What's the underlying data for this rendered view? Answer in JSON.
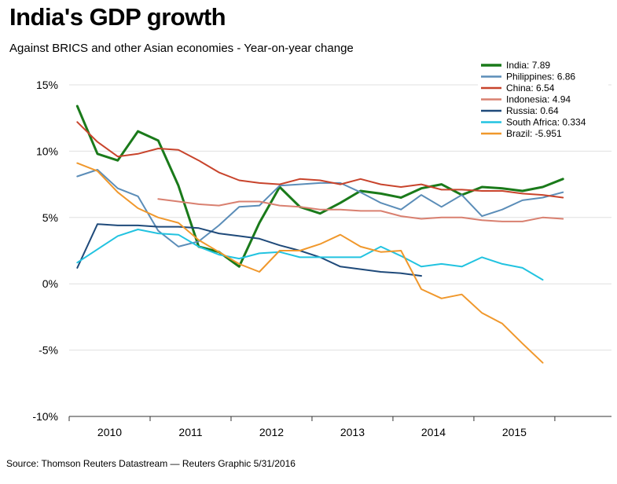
{
  "title": "India's GDP growth",
  "subtitle": "Against BRICS and other Asian economies - Year-on-year change",
  "source": "Source: Thomson Reuters Datastream — Reuters Graphic 5/31/2016",
  "chart_data": {
    "type": "line",
    "title": "India's GDP growth",
    "subtitle": "Against BRICS and other Asian economies - Year-on-year change",
    "xlabel": "",
    "ylabel": "",
    "x_unit": "year (quarterly points)",
    "xlim": [
      2009.5,
      2016.2
    ],
    "ylim": [
      -10,
      15
    ],
    "y_ticks": [
      15,
      10,
      5,
      0,
      -5,
      -10
    ],
    "y_tick_labels": [
      "15%",
      "10%",
      "5%",
      "0%",
      "-5%",
      "-10%"
    ],
    "x_ticks": [
      2010,
      2011,
      2012,
      2013,
      2014,
      2015
    ],
    "x_tick_labels": [
      "2010",
      "2011",
      "2012",
      "2013",
      "2014",
      "2015"
    ],
    "grid": "horizontal",
    "legend_position": "top-right",
    "series": [
      {
        "name": "India: 7.89",
        "color": "#1a7a1a",
        "stroke_width": 3,
        "points": [
          [
            2009.6,
            13.4
          ],
          [
            2009.85,
            9.8
          ],
          [
            2010.1,
            9.3
          ],
          [
            2010.35,
            11.5
          ],
          [
            2010.6,
            10.8
          ],
          [
            2010.85,
            7.4
          ],
          [
            2011.1,
            2.8
          ],
          [
            2011.35,
            2.4
          ],
          [
            2011.6,
            1.3
          ],
          [
            2011.85,
            4.6
          ],
          [
            2012.1,
            7.3
          ],
          [
            2012.35,
            5.8
          ],
          [
            2012.6,
            5.3
          ],
          [
            2012.85,
            6.1
          ],
          [
            2013.1,
            7.0
          ],
          [
            2013.35,
            6.8
          ],
          [
            2013.6,
            6.5
          ],
          [
            2013.85,
            7.2
          ],
          [
            2014.1,
            7.5
          ],
          [
            2014.35,
            6.7
          ],
          [
            2014.6,
            7.3
          ],
          [
            2014.85,
            7.2
          ],
          [
            2015.1,
            7.0
          ],
          [
            2015.35,
            7.3
          ],
          [
            2015.6,
            7.9
          ]
        ]
      },
      {
        "name": "Philippines: 6.86",
        "color": "#5b8db8",
        "stroke_width": 2,
        "points": [
          [
            2009.6,
            8.1
          ],
          [
            2009.85,
            8.6
          ],
          [
            2010.1,
            7.2
          ],
          [
            2010.35,
            6.6
          ],
          [
            2010.6,
            4.0
          ],
          [
            2010.85,
            2.8
          ],
          [
            2011.1,
            3.2
          ],
          [
            2011.35,
            4.4
          ],
          [
            2011.6,
            5.8
          ],
          [
            2011.85,
            5.9
          ],
          [
            2012.1,
            7.4
          ],
          [
            2012.35,
            7.5
          ],
          [
            2012.6,
            7.6
          ],
          [
            2012.85,
            7.6
          ],
          [
            2013.1,
            6.9
          ],
          [
            2013.35,
            6.1
          ],
          [
            2013.6,
            5.6
          ],
          [
            2013.85,
            6.7
          ],
          [
            2014.1,
            5.8
          ],
          [
            2014.35,
            6.7
          ],
          [
            2014.6,
            5.1
          ],
          [
            2014.85,
            5.6
          ],
          [
            2015.1,
            6.3
          ],
          [
            2015.35,
            6.5
          ],
          [
            2015.6,
            6.9
          ]
        ]
      },
      {
        "name": "China: 6.54",
        "color": "#c8442c",
        "stroke_width": 2,
        "points": [
          [
            2009.6,
            12.2
          ],
          [
            2009.85,
            10.7
          ],
          [
            2010.1,
            9.6
          ],
          [
            2010.35,
            9.8
          ],
          [
            2010.6,
            10.2
          ],
          [
            2010.85,
            10.1
          ],
          [
            2011.1,
            9.3
          ],
          [
            2011.35,
            8.4
          ],
          [
            2011.6,
            7.8
          ],
          [
            2011.85,
            7.6
          ],
          [
            2012.1,
            7.5
          ],
          [
            2012.35,
            7.9
          ],
          [
            2012.6,
            7.8
          ],
          [
            2012.85,
            7.5
          ],
          [
            2013.1,
            7.9
          ],
          [
            2013.35,
            7.5
          ],
          [
            2013.6,
            7.3
          ],
          [
            2013.85,
            7.5
          ],
          [
            2014.1,
            7.1
          ],
          [
            2014.35,
            7.1
          ],
          [
            2014.6,
            7.0
          ],
          [
            2014.85,
            7.0
          ],
          [
            2015.1,
            6.8
          ],
          [
            2015.35,
            6.7
          ],
          [
            2015.6,
            6.5
          ]
        ]
      },
      {
        "name": "Indonesia: 4.94",
        "color": "#d98070",
        "stroke_width": 2,
        "points": [
          [
            2010.6,
            6.4
          ],
          [
            2010.85,
            6.2
          ],
          [
            2011.1,
            6.0
          ],
          [
            2011.35,
            5.9
          ],
          [
            2011.6,
            6.2
          ],
          [
            2011.85,
            6.2
          ],
          [
            2012.1,
            5.9
          ],
          [
            2012.35,
            5.8
          ],
          [
            2012.6,
            5.6
          ],
          [
            2012.85,
            5.6
          ],
          [
            2013.1,
            5.5
          ],
          [
            2013.35,
            5.5
          ],
          [
            2013.6,
            5.1
          ],
          [
            2013.85,
            4.9
          ],
          [
            2014.1,
            5.0
          ],
          [
            2014.35,
            5.0
          ],
          [
            2014.6,
            4.8
          ],
          [
            2014.85,
            4.7
          ],
          [
            2015.1,
            4.7
          ],
          [
            2015.35,
            5.0
          ],
          [
            2015.6,
            4.9
          ]
        ]
      },
      {
        "name": "Russia: 0.64",
        "color": "#1f4a7a",
        "stroke_width": 2,
        "points": [
          [
            2009.6,
            1.2
          ],
          [
            2009.85,
            4.5
          ],
          [
            2010.1,
            4.4
          ],
          [
            2010.35,
            4.4
          ],
          [
            2010.6,
            4.3
          ],
          [
            2010.85,
            4.3
          ],
          [
            2011.1,
            4.2
          ],
          [
            2011.35,
            3.8
          ],
          [
            2011.6,
            3.6
          ],
          [
            2011.85,
            3.4
          ],
          [
            2012.1,
            2.9
          ],
          [
            2012.35,
            2.5
          ],
          [
            2012.6,
            2.0
          ],
          [
            2012.85,
            1.3
          ],
          [
            2013.1,
            1.1
          ],
          [
            2013.35,
            0.9
          ],
          [
            2013.6,
            0.8
          ],
          [
            2013.85,
            0.6
          ]
        ]
      },
      {
        "name": "South Africa: 0.334",
        "color": "#22c3e0",
        "stroke_width": 2,
        "points": [
          [
            2009.6,
            1.6
          ],
          [
            2009.85,
            2.6
          ],
          [
            2010.1,
            3.6
          ],
          [
            2010.35,
            4.1
          ],
          [
            2010.6,
            3.8
          ],
          [
            2010.85,
            3.7
          ],
          [
            2011.1,
            2.8
          ],
          [
            2011.35,
            2.2
          ],
          [
            2011.6,
            1.9
          ],
          [
            2011.85,
            2.3
          ],
          [
            2012.1,
            2.4
          ],
          [
            2012.35,
            2.0
          ],
          [
            2012.6,
            2.0
          ],
          [
            2012.85,
            2.0
          ],
          [
            2013.1,
            2.0
          ],
          [
            2013.35,
            2.8
          ],
          [
            2013.6,
            2.1
          ],
          [
            2013.85,
            1.3
          ],
          [
            2014.1,
            1.5
          ],
          [
            2014.35,
            1.3
          ],
          [
            2014.6,
            2.0
          ],
          [
            2014.85,
            1.5
          ],
          [
            2015.1,
            1.2
          ],
          [
            2015.35,
            0.3
          ]
        ]
      },
      {
        "name": "Brazil: -5.951",
        "color": "#f0982c",
        "stroke_width": 2,
        "points": [
          [
            2009.6,
            9.1
          ],
          [
            2009.85,
            8.5
          ],
          [
            2010.1,
            6.9
          ],
          [
            2010.35,
            5.7
          ],
          [
            2010.6,
            5.0
          ],
          [
            2010.85,
            4.6
          ],
          [
            2011.1,
            3.3
          ],
          [
            2011.35,
            2.4
          ],
          [
            2011.6,
            1.5
          ],
          [
            2011.85,
            0.9
          ],
          [
            2012.1,
            2.5
          ],
          [
            2012.35,
            2.5
          ],
          [
            2012.6,
            3.0
          ],
          [
            2012.85,
            3.7
          ],
          [
            2013.1,
            2.8
          ],
          [
            2013.35,
            2.4
          ],
          [
            2013.6,
            2.5
          ],
          [
            2013.85,
            -0.4
          ],
          [
            2014.1,
            -1.1
          ],
          [
            2014.35,
            -0.8
          ],
          [
            2014.6,
            -2.2
          ],
          [
            2014.85,
            -3.0
          ],
          [
            2015.1,
            -4.5
          ],
          [
            2015.35,
            -5.951
          ]
        ]
      }
    ]
  }
}
